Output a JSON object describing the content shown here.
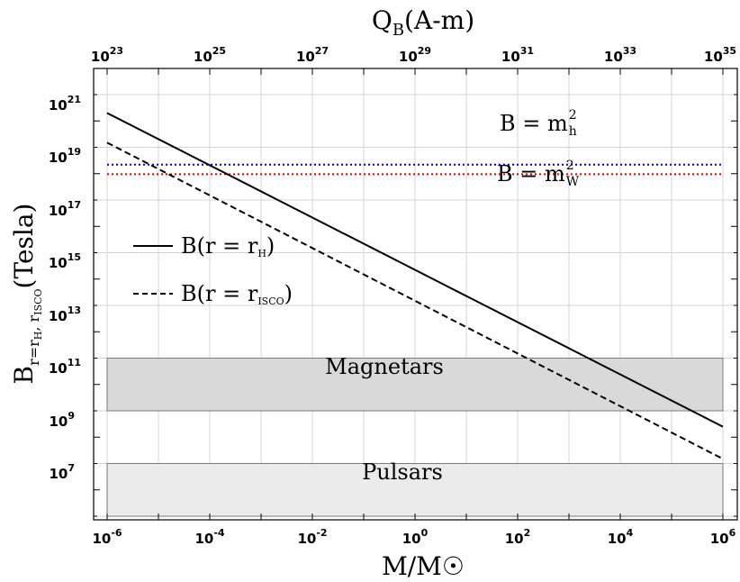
{
  "chart_data": {
    "type": "line",
    "x_scale": "log",
    "y_scale": "log",
    "grid": true,
    "xlim": [
      1e-06,
      1000000.0
    ],
    "ylim": [
      300000.0,
      1e+22
    ],
    "xlabel": "M/M☉",
    "ylabel": "B",
    "ylabel_sub": "r=r",
    "ylabel_sub2": "H",
    "ylabel_tail": ", r",
    "ylabel_sub3": "ISCO",
    "ylabel_unit": "(Tesla)",
    "top_axis": {
      "label": "Q",
      "label_sub": "B",
      "label_unit": "(A-m)",
      "tick_labels": [
        "23",
        "25",
        "27",
        "29",
        "31",
        "33",
        "35"
      ],
      "range": [
        1e+23,
        1e+35
      ]
    },
    "x_tick_labels": [
      "-6",
      "-4",
      "-2",
      "0",
      "2",
      "4",
      "6"
    ],
    "y_tick_labels": [
      "7",
      "9",
      "11",
      "13",
      "15",
      "17",
      "19",
      "21"
    ],
    "series": [
      {
        "name": "B(r = r_H)",
        "x": [
          1e-06,
          1000000.0
        ],
        "y": [
          2e+21,
          2500000000.0
        ],
        "style": "solid",
        "color": "#000000"
      },
      {
        "name": "B(r = r_ISCO)",
        "x": [
          1e-06,
          1000000.0
        ],
        "y": [
          1.5e+20,
          150000000.0
        ],
        "style": "dashed",
        "color": "#000000"
      }
    ],
    "hlines": [
      {
        "label": "B = m",
        "label_sub": "h",
        "label_sup": "2",
        "y": 2.2e+19,
        "color": "#0000cc",
        "style": "dotted"
      },
      {
        "label": "B = m",
        "label_sub": "W",
        "label_sup": "2",
        "y": 9.5e+18,
        "color": "#dd0000",
        "style": "dotted"
      }
    ],
    "bands": [
      {
        "label": "Magnetars",
        "y": [
          10000000000.0,
          1000000000000.0
        ],
        "color": "#d9d9d9"
      },
      {
        "label": "Pulsars",
        "y": [
          1000000.0,
          100000000.0
        ],
        "color": "#ebebeb"
      }
    ],
    "legend": {
      "placement": "middle-left",
      "entries": [
        {
          "text": "B(r = r",
          "sub": "H",
          "tail": ")",
          "style": "solid"
        },
        {
          "text": "B(r = r",
          "sub": "ISCO",
          "tail": ")",
          "style": "dashed"
        }
      ]
    }
  }
}
